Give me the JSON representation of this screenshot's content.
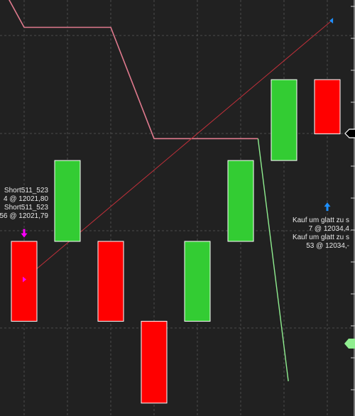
{
  "chart_data": {
    "type": "candlestick",
    "candles": [
      {
        "open": 12030,
        "close": 12021.6,
        "color": "#ff0000"
      },
      {
        "open": 12030,
        "close": 12038.5,
        "color": "#33cc33"
      },
      {
        "open": 12030,
        "close": 12021.6,
        "color": "#ff0000"
      },
      {
        "open": 12021.6,
        "close": 12013,
        "color": "#ff0000"
      },
      {
        "open": 12021.6,
        "close": 12030,
        "color": "#33cc33"
      },
      {
        "open": 12030,
        "close": 12038.5,
        "color": "#33cc33"
      },
      {
        "open": 12038.5,
        "close": 12047,
        "color": "#33cc33"
      },
      {
        "open": 12047,
        "close": 12041.3,
        "color": "#ff0000"
      }
    ],
    "pink_line": {
      "color": "#e07a8e",
      "points": [
        {
          "i": -0.6,
          "v": 12057.5
        },
        {
          "i": 0,
          "v": 12052.5
        },
        {
          "i": 2,
          "v": 12052.5
        },
        {
          "i": 3,
          "v": 12040.8
        },
        {
          "i": 5.4,
          "v": 12040.8
        }
      ]
    },
    "green_line": {
      "color": "#90ee90",
      "points": [
        {
          "i": 5.4,
          "v": 12040.8
        },
        {
          "i": 6.1,
          "v": 12015.3
        }
      ]
    },
    "trend_line": {
      "color": "#c0303a",
      "points": [
        {
          "i": 0,
          "v": 12026
        },
        {
          "i": 7.1,
          "v": 12053.2
        }
      ]
    },
    "grid": true,
    "markers": [
      {
        "kind": "arrow-down",
        "i": 0,
        "v": 12030.7,
        "color": "#ff00ff"
      },
      {
        "kind": "arrow-up",
        "i": 7,
        "v": 12033.8,
        "color": "#1e90ff"
      },
      {
        "kind": "triangle-right",
        "i": 0,
        "v": 12026,
        "color": "#ff00ff"
      },
      {
        "kind": "triangle-left",
        "i": 7.1,
        "v": 12053.2,
        "color": "#1e90ff"
      }
    ]
  },
  "annotations": {
    "short_signal": {
      "line1": "Short511_523",
      "line2": "4 @ 12021,80",
      "line3": "Short511_523",
      "line4": "56 @ 12021,79"
    },
    "long_signal": {
      "line1": "Kauf um glatt zu s",
      "line2": "7 @ 12034,4",
      "line3": "Kauf um glatt zu s",
      "line4": "53 @ 12034,-"
    }
  }
}
